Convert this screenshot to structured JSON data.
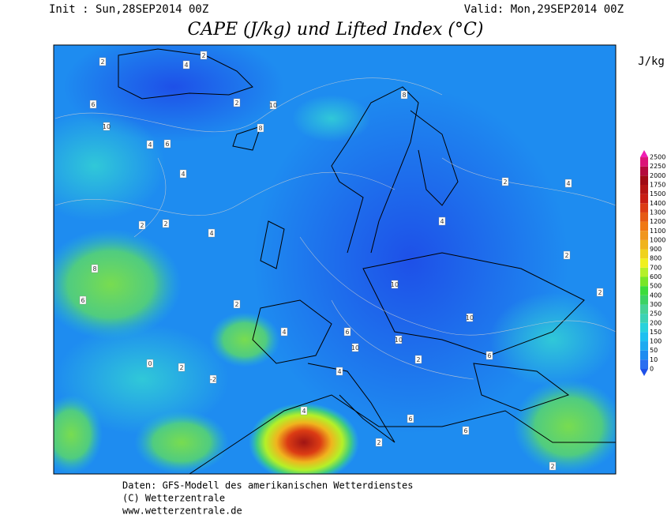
{
  "header": {
    "init": "Init : Sun,28SEP2014 00Z",
    "valid": "Valid: Mon,29SEP2014 00Z",
    "title": "CAPE (J/kg) und Lifted Index (°C)"
  },
  "colorbar": {
    "unit": "J/kg",
    "levels": [
      0,
      10,
      50,
      100,
      150,
      200,
      250,
      300,
      400,
      500,
      600,
      700,
      800,
      900,
      1000,
      1100,
      1200,
      1300,
      1400,
      1500,
      1750,
      2000,
      2250,
      2500
    ],
    "colors": [
      "#2a6ef0",
      "#1e8cf0",
      "#1eaaf0",
      "#1ec0f0",
      "#28d2dc",
      "#3cd2b4",
      "#46d296",
      "#3cd264",
      "#3cdc3c",
      "#78e628",
      "#b4f028",
      "#f0f01e",
      "#f0d21e",
      "#f0b41e",
      "#f0961e",
      "#f07814",
      "#e65a14",
      "#dc3c14",
      "#c81e14",
      "#b41414",
      "#a00a14",
      "#b40a3c",
      "#dc1478",
      "#f01eb4"
    ],
    "below_color": "#1e50e8"
  },
  "map": {
    "contour_labels": [
      "2",
      "4",
      "2",
      "6",
      "8",
      "10",
      "2",
      "4",
      "6",
      "4",
      "2",
      "8",
      "10",
      "6",
      "4",
      "2",
      "10",
      "10",
      "10",
      "6",
      "4",
      "2",
      "4",
      "2",
      "0",
      "2",
      "-2",
      "4",
      "6",
      "2",
      "4",
      "2",
      "6",
      "8",
      "10",
      "2",
      "4",
      "2",
      "6",
      "2"
    ]
  },
  "footer": {
    "line1": "Daten: GFS-Modell des amerikanischen Wetterdienstes",
    "line2": "(C) Wetterzentrale",
    "line3": "www.wetterzentrale.de"
  }
}
